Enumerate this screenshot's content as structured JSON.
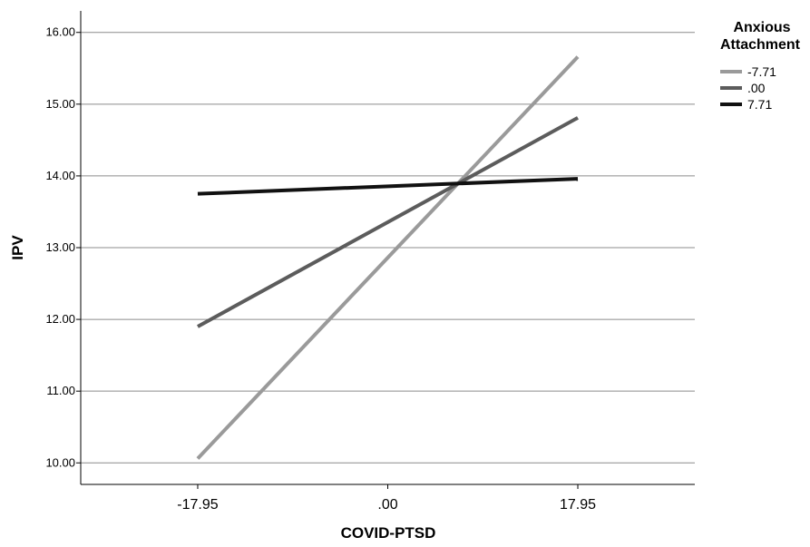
{
  "chart_data": {
    "type": "line",
    "xlabel": "COVID-PTSD",
    "ylabel": "IPV",
    "x": [
      -17.95,
      17.95
    ],
    "x_tick_labels": [
      "-17.95",
      ".00",
      "17.95"
    ],
    "y_tick_labels": [
      "10.00",
      "11.00",
      "12.00",
      "13.00",
      "14.00",
      "15.00",
      "16.00"
    ],
    "ylim": [
      9.7,
      16.3
    ],
    "xlim": [
      -29.0,
      29.0
    ],
    "grid": "horizontal",
    "legend": {
      "title_lines": [
        "Anxious",
        "Attachment"
      ],
      "placement": "right"
    },
    "series": [
      {
        "name": "-7.71",
        "color": "#9a9a9a",
        "values": [
          10.06,
          15.66
        ]
      },
      {
        "name": ".00",
        "color": "#5c5c5c",
        "values": [
          11.9,
          14.81
        ]
      },
      {
        "name": "7.71",
        "color": "#111111",
        "values": [
          13.75,
          13.96
        ]
      }
    ]
  }
}
